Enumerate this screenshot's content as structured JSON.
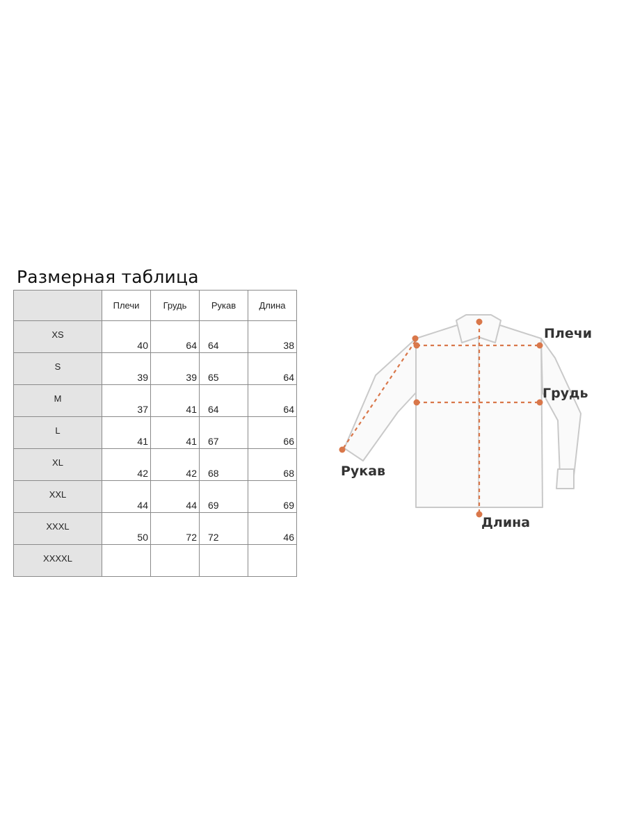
{
  "title": "Размерная таблица",
  "columns": [
    "Плечи",
    "Грудь",
    "Рукав",
    "Длина"
  ],
  "rows": [
    {
      "size": "XS",
      "values": [
        "40",
        "64",
        "64",
        "38"
      ]
    },
    {
      "size": "S",
      "values": [
        "39",
        "39",
        "65",
        "64"
      ]
    },
    {
      "size": "M",
      "values": [
        "37",
        "41",
        "64",
        "64"
      ]
    },
    {
      "size": "L",
      "values": [
        "41",
        "41",
        "67",
        "66"
      ]
    },
    {
      "size": "XL",
      "values": [
        "42",
        "42",
        "68",
        "68"
      ]
    },
    {
      "size": "XXL",
      "values": [
        "44",
        "44",
        "69",
        "69"
      ]
    },
    {
      "size": "XXXL",
      "values": [
        "50",
        "72",
        "72",
        "46"
      ]
    },
    {
      "size": "XXXXL",
      "values": [
        "",
        "",
        "",
        ""
      ]
    }
  ],
  "diagram": {
    "labels": {
      "shoulders": "Плечи",
      "chest": "Грудь",
      "sleeve": "Рукав",
      "length": "Длина"
    },
    "colors": {
      "measure": "#d9774a",
      "outline": "#c9c9c9",
      "fill": "#fafafa"
    }
  }
}
